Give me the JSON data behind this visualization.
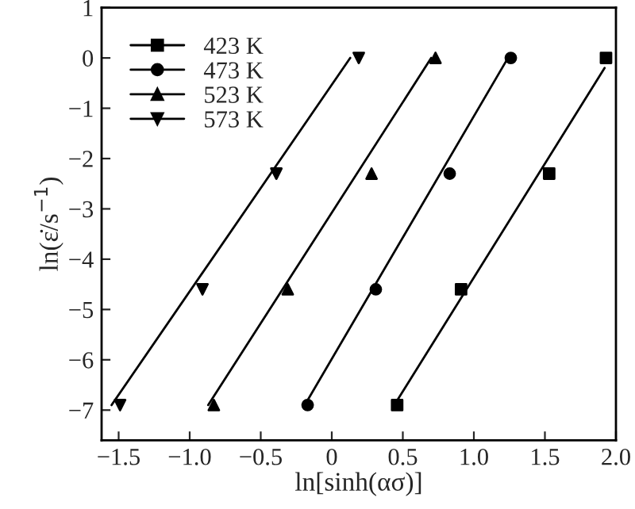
{
  "chart_data": {
    "type": "scatter",
    "xlabel": "ln[sinh(ασ)]",
    "ylabel": "ln(ε̇/s$^{−1}$)",
    "xlim": [
      -1.62,
      2.0
    ],
    "ylim": [
      -7.6,
      1
    ],
    "xticks": [
      -1.5,
      {
        "value": -1,
        "label": "−1.0"
      },
      -0.5,
      0,
      0.5,
      {
        "value": 1,
        "label": "1.0"
      },
      1.5,
      {
        "value": 2,
        "label": "2.0"
      }
    ],
    "yticks": [
      -7,
      -6,
      -5,
      -4,
      -3,
      -2,
      -1,
      0,
      1
    ],
    "grid": false,
    "legend": "top left",
    "series": [
      {
        "name": "423 K",
        "marker": "square",
        "color": "#000000",
        "x": [
          0.46,
          0.91,
          1.53,
          1.93
        ],
        "values": [
          -6.9,
          -4.6,
          -2.3,
          0
        ]
      },
      {
        "name": "473 K",
        "marker": "circle",
        "color": "#000000",
        "x": [
          -0.17,
          0.31,
          0.83,
          1.26
        ],
        "values": [
          -6.9,
          -4.6,
          -2.3,
          0
        ]
      },
      {
        "name": "523 K",
        "marker": "triangle",
        "color": "#000000",
        "x": [
          -0.83,
          -0.31,
          0.28,
          0.73
        ],
        "values": [
          -6.9,
          -4.6,
          -2.3,
          0
        ]
      },
      {
        "name": "573 K",
        "marker": "triangle_down",
        "color": "#000000",
        "x": [
          -1.49,
          -0.91,
          -0.39,
          0.19
        ],
        "values": [
          -6.9,
          -4.6,
          -2.3,
          0
        ]
      },
      {
        "type": "line",
        "line_style": "solid",
        "color": "#000000",
        "x": [
          0.44,
          1.92
        ],
        "values": [
          -6.9,
          -0.2
        ]
      },
      {
        "type": "line",
        "line_style": "solid",
        "color": "#000000",
        "x": [
          -0.19,
          1.24
        ],
        "values": [
          -6.9,
          0
        ]
      },
      {
        "type": "line",
        "line_style": "solid",
        "color": "#000000",
        "x": [
          -0.87,
          0.7
        ],
        "values": [
          -6.9,
          0
        ]
      },
      {
        "type": "line",
        "line_style": "solid",
        "color": "#000000",
        "x": [
          -1.55,
          0.13
        ],
        "values": [
          -6.9,
          0
        ]
      }
    ]
  }
}
